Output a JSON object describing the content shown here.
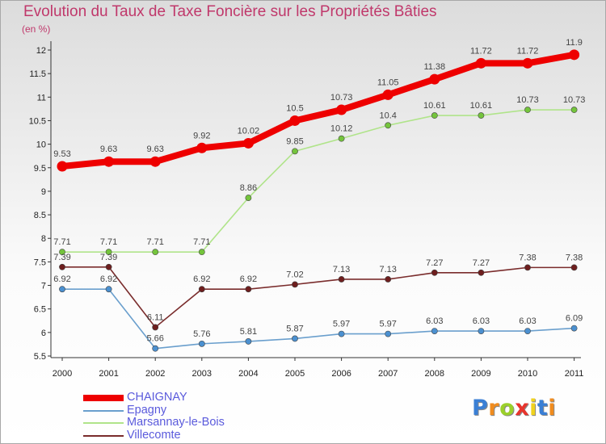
{
  "title": "Evolution du Taux de Taxe Foncière sur les Propriétés Bâties",
  "subtitle": "(en %)",
  "logo": {
    "text": "Proxiti",
    "letter_colors": [
      "#3a7fd5",
      "#f08c1e",
      "#9bd02a",
      "#e8342c",
      "#f0d21e",
      "#3a7fd5",
      "#f08c1e"
    ]
  },
  "chart_data": {
    "type": "line",
    "x": [
      "2000",
      "2001",
      "2002",
      "2003",
      "2004",
      "2005",
      "2006",
      "2007",
      "2008",
      "2009",
      "2010",
      "2011"
    ],
    "y_ticks": [
      "5.5",
      "6",
      "6.5",
      "7",
      "7.5",
      "8",
      "8.5",
      "9",
      "9.5",
      "10",
      "10.5",
      "11",
      "11.5",
      "12"
    ],
    "ylim": [
      5.5,
      12
    ],
    "grid": false,
    "legend_position": "bottom-left",
    "series": [
      {
        "name": "CHAIGNAY",
        "color": "#ee0000",
        "values": [
          9.53,
          9.63,
          9.63,
          9.92,
          10.02,
          10.5,
          10.73,
          11.05,
          11.38,
          11.72,
          11.72,
          11.9
        ],
        "labels": [
          "9.53",
          "9.63",
          "9.63",
          "9.92",
          "10.02",
          "10.5",
          "10.73",
          "11.05",
          "11.38",
          "11.72",
          "11.72",
          "11.9"
        ]
      },
      {
        "name": "Epagny",
        "color": "#6a9fcd",
        "marker_color": "#4b90d0",
        "values": [
          6.92,
          6.92,
          5.66,
          5.76,
          5.81,
          5.87,
          5.97,
          5.97,
          6.03,
          6.03,
          6.03,
          6.09
        ],
        "labels": [
          "6.92",
          "6.92",
          "5.66",
          "5.76",
          "5.81",
          "5.87",
          "5.97",
          "5.97",
          "6.03",
          "6.03",
          "6.03",
          "6.09"
        ]
      },
      {
        "name": "Marsannay-le-Bois",
        "color": "#b0e48a",
        "marker_color": "#74c43c",
        "values": [
          7.71,
          7.71,
          7.71,
          7.71,
          8.86,
          9.85,
          10.12,
          10.4,
          10.61,
          10.61,
          10.73,
          10.73
        ],
        "labels": [
          "7.71",
          "7.71",
          "7.71",
          "7.71",
          "8.86",
          "9.85",
          "10.12",
          "10.4",
          "10.61",
          "10.61",
          "10.73",
          "10.73"
        ]
      },
      {
        "name": "Villecomte",
        "color": "#7a2c2c",
        "marker_color": "#6e1e1e",
        "values": [
          7.39,
          7.39,
          6.11,
          6.92,
          6.92,
          7.02,
          7.13,
          7.13,
          7.27,
          7.27,
          7.38,
          7.38
        ],
        "labels": [
          "7.39",
          "7.39",
          "6.11",
          "6.92",
          "6.92",
          "7.02",
          "7.13",
          "7.13",
          "7.27",
          "7.27",
          "7.38",
          "7.38"
        ]
      }
    ]
  }
}
